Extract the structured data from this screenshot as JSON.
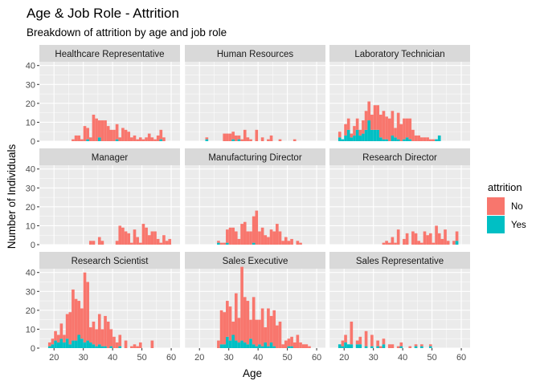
{
  "colors": {
    "No": "#F8766D",
    "Yes": "#00BFC4",
    "panel": "#EBEBEB",
    "strip": "#D9D9D9",
    "grid": "#FFFFFF"
  },
  "chart_data": {
    "type": "bar",
    "subtype": "faceted stacked histogram",
    "title": "Age & Job Role - Attrition",
    "subtitle": "Breakdown of attrition by age and job role",
    "xlabel": "Age",
    "ylabel": "Number of Individuals",
    "xlim": [
      15,
      63
    ],
    "ylim": [
      0,
      42
    ],
    "x_ticks": [
      20,
      30,
      40,
      50,
      60
    ],
    "y_ticks": [
      0,
      10,
      20,
      30,
      40
    ],
    "bin_start": 18,
    "bin_width": 1,
    "grid": true,
    "facet_layout": "3x3",
    "legend": {
      "title": "attrition",
      "position": "right",
      "entries": [
        "No",
        "Yes"
      ]
    },
    "panels": [
      {
        "title": "Healthcare Representative",
        "no": [
          0,
          0,
          0,
          0,
          0,
          0,
          0,
          0,
          1,
          3,
          3,
          1,
          8,
          6,
          2,
          14,
          12,
          9,
          11,
          11,
          8,
          6,
          6,
          8,
          2,
          7,
          6,
          5,
          2,
          3,
          1,
          2,
          1,
          2,
          4,
          2,
          1,
          3,
          5,
          2,
          0,
          0
        ],
        "yes": [
          0,
          0,
          0,
          0,
          0,
          0,
          0,
          0,
          0,
          0,
          0,
          0,
          0,
          1,
          0,
          0,
          0,
          2,
          0,
          0,
          0,
          0,
          0,
          1,
          0,
          0,
          0,
          0,
          0,
          0,
          0,
          0,
          0,
          0,
          0,
          0,
          0,
          0,
          1,
          0,
          0,
          0
        ]
      },
      {
        "title": "Human Resources",
        "no": [
          0,
          0,
          0,
          0,
          1,
          0,
          0,
          0,
          0,
          0,
          4,
          4,
          4,
          4,
          3,
          2,
          1,
          6,
          2,
          1,
          0,
          6,
          0,
          2,
          0,
          1,
          3,
          0,
          0,
          1,
          0,
          0,
          0,
          0,
          1,
          0,
          0,
          0,
          0,
          0,
          0,
          0
        ],
        "yes": [
          0,
          0,
          0,
          0,
          1,
          0,
          0,
          0,
          0,
          0,
          0,
          0,
          0,
          1,
          0,
          1,
          0,
          0,
          0,
          0,
          0,
          0,
          0,
          0,
          0,
          0,
          0,
          0,
          0,
          0,
          0,
          0,
          0,
          0,
          0,
          0,
          0,
          0,
          0,
          0,
          0,
          0
        ]
      },
      {
        "title": "Laboratory Technician",
        "no": [
          3,
          0,
          6,
          6,
          2,
          5,
          6,
          3,
          7,
          10,
          10,
          8,
          13,
          13,
          12,
          15,
          12,
          12,
          13,
          5,
          14,
          9,
          11,
          10,
          11,
          6,
          3,
          3,
          2,
          2,
          2,
          1,
          1,
          0,
          0,
          0,
          0,
          0,
          0,
          0,
          0,
          0
        ],
        "yes": [
          2,
          1,
          3,
          6,
          2,
          3,
          6,
          3,
          4,
          6,
          11,
          6,
          6,
          6,
          2,
          1,
          1,
          0,
          3,
          2,
          1,
          0,
          1,
          2,
          1,
          0,
          0,
          0,
          0,
          0,
          0,
          0,
          0,
          1,
          3,
          0,
          0,
          0,
          0,
          0,
          0,
          0
        ]
      },
      {
        "title": "Manager",
        "no": [
          0,
          0,
          0,
          0,
          0,
          0,
          0,
          0,
          0,
          0,
          0,
          0,
          0,
          0,
          2,
          2,
          0,
          4,
          2,
          0,
          0,
          0,
          0,
          2,
          10,
          9,
          7,
          6,
          1,
          8,
          4,
          1,
          11,
          9,
          5,
          7,
          7,
          3,
          1,
          5,
          2,
          3
        ],
        "yes": [
          0,
          0,
          0,
          0,
          0,
          0,
          0,
          0,
          0,
          0,
          0,
          0,
          0,
          0,
          0,
          0,
          0,
          0,
          0,
          0,
          0,
          0,
          0,
          0,
          0,
          0,
          0,
          0,
          0,
          0,
          0,
          0,
          0,
          0,
          0,
          0,
          0,
          0,
          0,
          0,
          0,
          0
        ]
      },
      {
        "title": "Manufacturing Director",
        "no": [
          0,
          0,
          0,
          0,
          0,
          0,
          0,
          0,
          1,
          1,
          1,
          7,
          9,
          9,
          7,
          3,
          11,
          12,
          7,
          7,
          14,
          18,
          7,
          9,
          5,
          4,
          8,
          7,
          11,
          7,
          2,
          4,
          2,
          3,
          0,
          2,
          1,
          0,
          0,
          0,
          0,
          0
        ],
        "yes": [
          0,
          0,
          0,
          0,
          0,
          0,
          0,
          0,
          1,
          0,
          0,
          1,
          0,
          0,
          0,
          0,
          0,
          0,
          0,
          0,
          1,
          0,
          0,
          0,
          0,
          0,
          0,
          0,
          0,
          0,
          0,
          0,
          0,
          0,
          0,
          0,
          0,
          0,
          0,
          0,
          0,
          0
        ]
      },
      {
        "title": "Research Director",
        "no": [
          0,
          0,
          0,
          0,
          0,
          0,
          0,
          0,
          0,
          0,
          0,
          0,
          0,
          0,
          0,
          1,
          2,
          1,
          4,
          1,
          8,
          0,
          3,
          6,
          0,
          7,
          6,
          2,
          1,
          7,
          5,
          6,
          1,
          10,
          6,
          3,
          8,
          2,
          0,
          2,
          5,
          0
        ],
        "yes": [
          0,
          0,
          0,
          0,
          0,
          0,
          0,
          0,
          0,
          0,
          0,
          0,
          0,
          0,
          0,
          0,
          0,
          0,
          0,
          0,
          0,
          0,
          0,
          0,
          0,
          0,
          0,
          0,
          0,
          0,
          0,
          0,
          0,
          0,
          0,
          0,
          0,
          0,
          0,
          0,
          2,
          0
        ]
      },
      {
        "title": "Research Scientist",
        "no": [
          2,
          3,
          5,
          4,
          8,
          4,
          13,
          17,
          27,
          22,
          18,
          16,
          37,
          31,
          8,
          12,
          9,
          16,
          9,
          16,
          14,
          9,
          6,
          3,
          6,
          0,
          4,
          0,
          1,
          2,
          1,
          3,
          0,
          0,
          0,
          4,
          0,
          0,
          0,
          0,
          0,
          0
        ],
        "yes": [
          1,
          2,
          4,
          3,
          5,
          3,
          5,
          2,
          4,
          4,
          7,
          5,
          3,
          4,
          3,
          2,
          1,
          2,
          1,
          1,
          0,
          1,
          0,
          0,
          1,
          0,
          0,
          0,
          0,
          0,
          0,
          0,
          0,
          0,
          0,
          0,
          0,
          0,
          0,
          0,
          0,
          0
        ]
      },
      {
        "title": "Sales Executive",
        "no": [
          0,
          0,
          0,
          0,
          0,
          0,
          0,
          0,
          4,
          18,
          17,
          19,
          18,
          7,
          25,
          13,
          39,
          24,
          23,
          10,
          25,
          14,
          13,
          20,
          8,
          20,
          14,
          19,
          12,
          14,
          2,
          4,
          4,
          5,
          3,
          7,
          3,
          2,
          2,
          1,
          0,
          0
        ],
        "yes": [
          0,
          0,
          0,
          0,
          0,
          0,
          0,
          0,
          0,
          2,
          2,
          6,
          4,
          7,
          4,
          3,
          4,
          3,
          2,
          5,
          2,
          1,
          2,
          1,
          3,
          1,
          3,
          1,
          0,
          0,
          0,
          0,
          1,
          1,
          0,
          0,
          0,
          0,
          0,
          0,
          0,
          0
        ]
      },
      {
        "title": "Sales Representative",
        "no": [
          0,
          3,
          4,
          0,
          12,
          0,
          2,
          4,
          0,
          8,
          0,
          6,
          0,
          3,
          1,
          3,
          0,
          2,
          2,
          0,
          1,
          2,
          0,
          0,
          1,
          0,
          1,
          0,
          1,
          0,
          0,
          1,
          0,
          0,
          0,
          0,
          0,
          0,
          0,
          0,
          0,
          0
        ],
        "yes": [
          2,
          1,
          3,
          2,
          2,
          0,
          2,
          2,
          0,
          1,
          0,
          1,
          0,
          1,
          0,
          2,
          0,
          0,
          0,
          0,
          0,
          1,
          0,
          0,
          0,
          0,
          1,
          0,
          1,
          0,
          0,
          1,
          0,
          0,
          0,
          0,
          0,
          0,
          0,
          0,
          0,
          0
        ]
      }
    ]
  }
}
